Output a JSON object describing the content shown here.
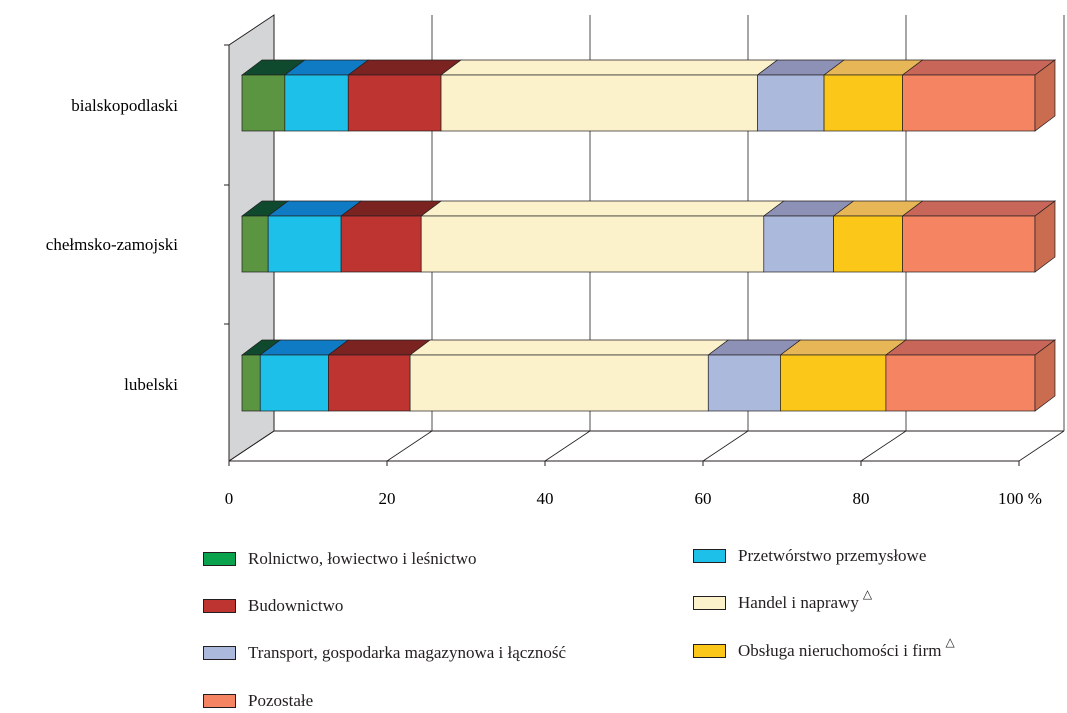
{
  "chart_data": {
    "type": "bar",
    "orientation": "horizontal",
    "stacked": true,
    "percent_stacked": true,
    "three_d": true,
    "categories": [
      "bialskopodlaski",
      "chełmsko-zamojski",
      "lubelski"
    ],
    "series": [
      {
        "name": "Rolnictwo, łowiectwo i leśnictwo",
        "color": "#5b9541",
        "top_color": "#0f4a2e",
        "values": [
          5.4,
          3.3,
          2.3
        ]
      },
      {
        "name": "Przetwórstwo przemysłowe",
        "color": "#1cc0e8",
        "top_color": "#0f7bc4",
        "values": [
          8.0,
          9.2,
          8.6
        ]
      },
      {
        "name": "Budownictwo",
        "color": "#be3430",
        "top_color": "#7a2320",
        "values": [
          11.7,
          10.1,
          10.3
        ]
      },
      {
        "name": "Handel i naprawy",
        "color": "#fbf2cc",
        "top_color": "#fbf2cc",
        "values": [
          39.9,
          43.2,
          37.6
        ]
      },
      {
        "name": "Transport, gospodarka magazynowa i łączność",
        "color": "#abb9dd",
        "top_color": "#8d91b5",
        "values": [
          8.4,
          8.8,
          9.1
        ]
      },
      {
        "name": "Obsługa nieruchomości i firm",
        "color": "#fbc81a",
        "top_color": "#e7b656",
        "values": [
          9.9,
          8.7,
          13.3
        ]
      },
      {
        "name": "Pozostałe",
        "color": "#f58462",
        "top_color": "#c8665a",
        "values": [
          16.7,
          16.7,
          18.8
        ]
      }
    ],
    "xlim": [
      0,
      100
    ],
    "xticks": [
      "0",
      "20",
      "40",
      "60",
      "80",
      "100 %"
    ],
    "grid": true,
    "legend_position": "bottom"
  },
  "legend": {
    "items": [
      {
        "label": "Rolnictwo, łowiectwo i leśnictwo",
        "color": "#0aa24c",
        "mark": ""
      },
      {
        "label": "Przetwórstwo przemysłowe",
        "color": "#1cc0e8",
        "mark": ""
      },
      {
        "label": "Budownictwo",
        "color": "#be3430",
        "mark": ""
      },
      {
        "label": "Handel i naprawy",
        "color": "#fbf2cc",
        "mark": "△"
      },
      {
        "label": "Transport, gospodarka magazynowa i łączność",
        "color": "#abb9dd",
        "mark": ""
      },
      {
        "label": "Obsługa nieruchomości i firm",
        "color": "#fbc81a",
        "mark": "△"
      },
      {
        "label": "Pozostałe",
        "color": "#f58462",
        "mark": ""
      }
    ]
  }
}
